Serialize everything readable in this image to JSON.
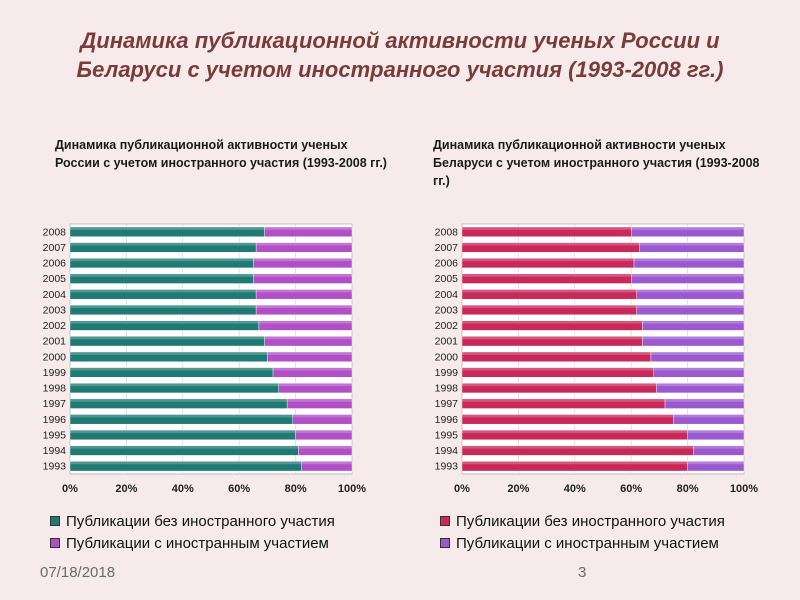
{
  "slide": {
    "title": "Динамика публикационной активности ученых России и Беларуси с учетом иностранного участия (1993-2008 гг.)",
    "date": "07/18/2018",
    "page_number": "3"
  },
  "chart_data": [
    {
      "id": "russia",
      "type": "bar",
      "orientation": "horizontal",
      "stacked": "percent",
      "title": "Динамика публикационной активности ученых России с учетом иностранного участия (1993-2008 гг.)",
      "categories": [
        "1993",
        "1994",
        "1995",
        "1996",
        "1997",
        "1998",
        "1999",
        "2000",
        "2001",
        "2002",
        "2003",
        "2004",
        "2005",
        "2006",
        "2007",
        "2008"
      ],
      "series": [
        {
          "name": "Публикации без иностранного участия",
          "color": "#1f7a74",
          "values": [
            82,
            81,
            80,
            79,
            77,
            74,
            72,
            70,
            69,
            67,
            66,
            66,
            65,
            65,
            66,
            69
          ]
        },
        {
          "name": "Публикации с иностранным участием",
          "color": "#b14fc6",
          "values": [
            18,
            19,
            20,
            21,
            23,
            26,
            28,
            30,
            31,
            33,
            34,
            34,
            35,
            35,
            34,
            31
          ]
        }
      ],
      "xticks": [
        "0%",
        "20%",
        "40%",
        "60%",
        "80%",
        "100%"
      ],
      "xlim": [
        0,
        100
      ],
      "legend": "bottom"
    },
    {
      "id": "belarus",
      "type": "bar",
      "orientation": "horizontal",
      "stacked": "percent",
      "title": "Динамика публикационной активности ученых Беларуси с учетом иностранного участия (1993-2008 гг.)",
      "categories": [
        "1993",
        "1994",
        "1995",
        "1996",
        "1997",
        "1998",
        "1999",
        "2000",
        "2001",
        "2002",
        "2003",
        "2004",
        "2005",
        "2006",
        "2007",
        "2008"
      ],
      "series": [
        {
          "name": "Публикации без иностранного участия",
          "color": "#c8285a",
          "values": [
            80,
            82,
            80,
            75,
            72,
            69,
            68,
            67,
            64,
            64,
            62,
            62,
            60,
            61,
            63,
            60
          ]
        },
        {
          "name": "Публикации с иностранным участием",
          "color": "#9b59d0",
          "values": [
            20,
            18,
            20,
            25,
            28,
            31,
            32,
            33,
            36,
            36,
            38,
            38,
            40,
            39,
            37,
            40
          ]
        }
      ],
      "xticks": [
        "0%",
        "20%",
        "40%",
        "60%",
        "80%",
        "100%"
      ],
      "xlim": [
        0,
        100
      ],
      "legend": "bottom"
    }
  ]
}
